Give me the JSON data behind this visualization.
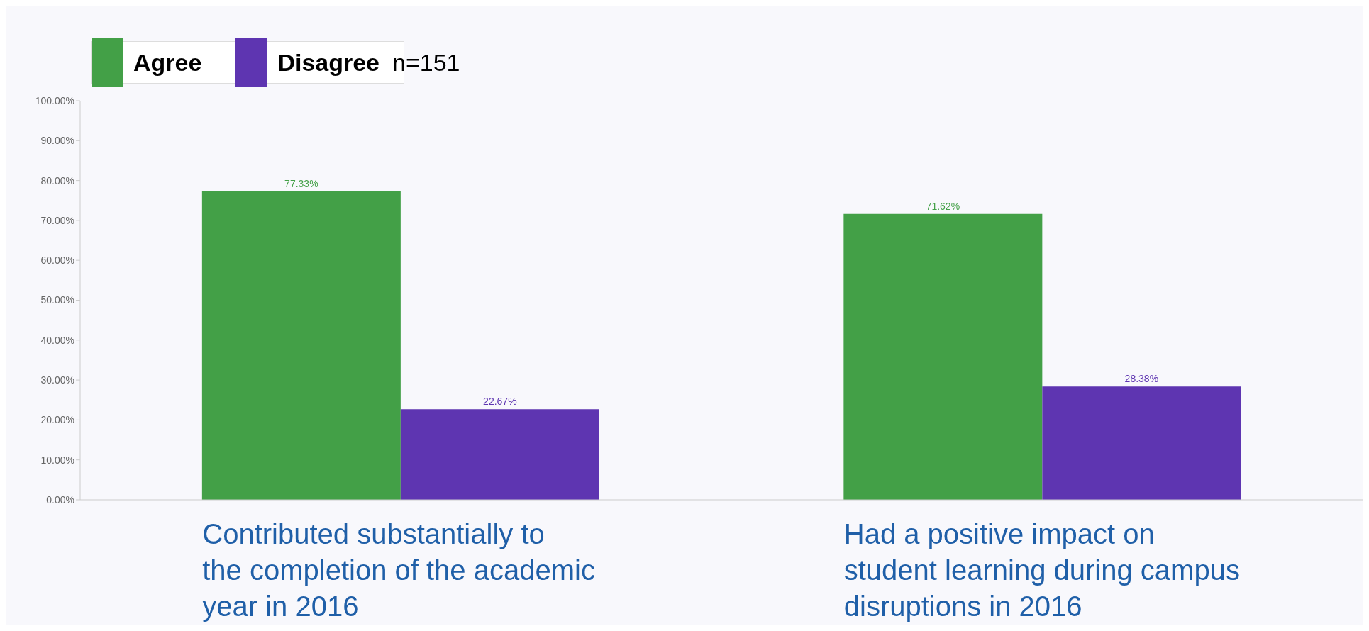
{
  "chart_data": {
    "type": "bar",
    "categories": [
      "Contributed substantially to the completion of the academic year in 2016",
      "Had a positive impact on student learning during campus disruptions in 2016"
    ],
    "series": [
      {
        "name": "Agree",
        "color": "#43a047",
        "values": [
          77.33,
          71.62
        ]
      },
      {
        "name": "Disagree",
        "color": "#5e35b1",
        "values": [
          22.67,
          28.38
        ]
      }
    ],
    "ylim": [
      0,
      100
    ],
    "yticks": [
      {
        "value": 0,
        "label": "0.00%"
      },
      {
        "value": 10,
        "label": "10.00%"
      },
      {
        "value": 20,
        "label": "20.00%"
      },
      {
        "value": 30,
        "label": "30.00%"
      },
      {
        "value": 40,
        "label": "40.00%"
      },
      {
        "value": 50,
        "label": "50.00%"
      },
      {
        "value": 60,
        "label": "60.00%"
      },
      {
        "value": 70,
        "label": "70.00%"
      },
      {
        "value": 80,
        "label": "80.00%"
      },
      {
        "value": 90,
        "label": "90.00%"
      },
      {
        "value": 100,
        "label": "100.00%"
      }
    ],
    "value_labels": [
      [
        "77.33%",
        "71.62%"
      ],
      [
        "22.67%",
        "28.38%"
      ]
    ],
    "legend": "top left",
    "grid": false,
    "annotations": [
      "n=151"
    ]
  }
}
